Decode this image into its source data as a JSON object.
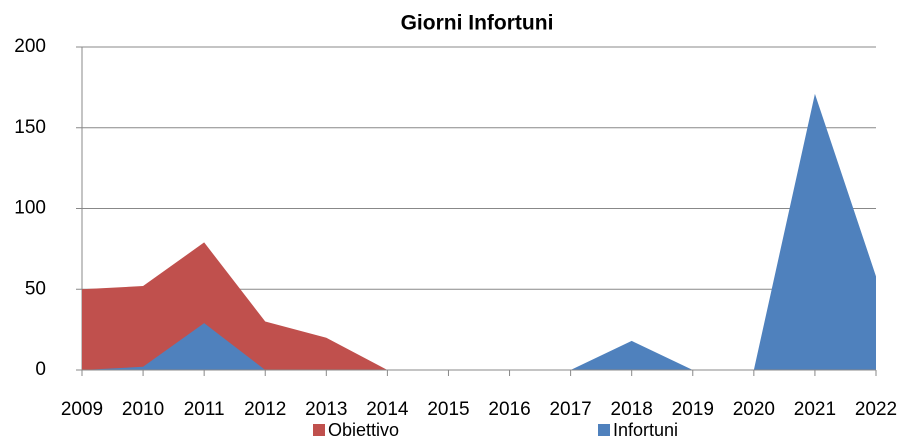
{
  "chart_data": {
    "type": "area",
    "title": "Giorni Infortuni",
    "categories": [
      "2009",
      "2010",
      "2011",
      "2012",
      "2013",
      "2014",
      "2015",
      "2016",
      "2017",
      "2018",
      "2019",
      "2020",
      "2021",
      "2022"
    ],
    "series": [
      {
        "name": "Obiettivo",
        "color": "#c0504d",
        "values": [
          50,
          52,
          79,
          30,
          20,
          0,
          0,
          0,
          0,
          0,
          0,
          0,
          0,
          0
        ]
      },
      {
        "name": "Infortuni",
        "color": "#4f81bd",
        "values": [
          0,
          2,
          29,
          0,
          0,
          0,
          0,
          0,
          0,
          18,
          0,
          0,
          171,
          58
        ]
      }
    ],
    "ylim": [
      0,
      200
    ],
    "yticks": [
      0,
      50,
      100,
      150,
      200
    ],
    "grid": true,
    "legend": "bottom"
  }
}
